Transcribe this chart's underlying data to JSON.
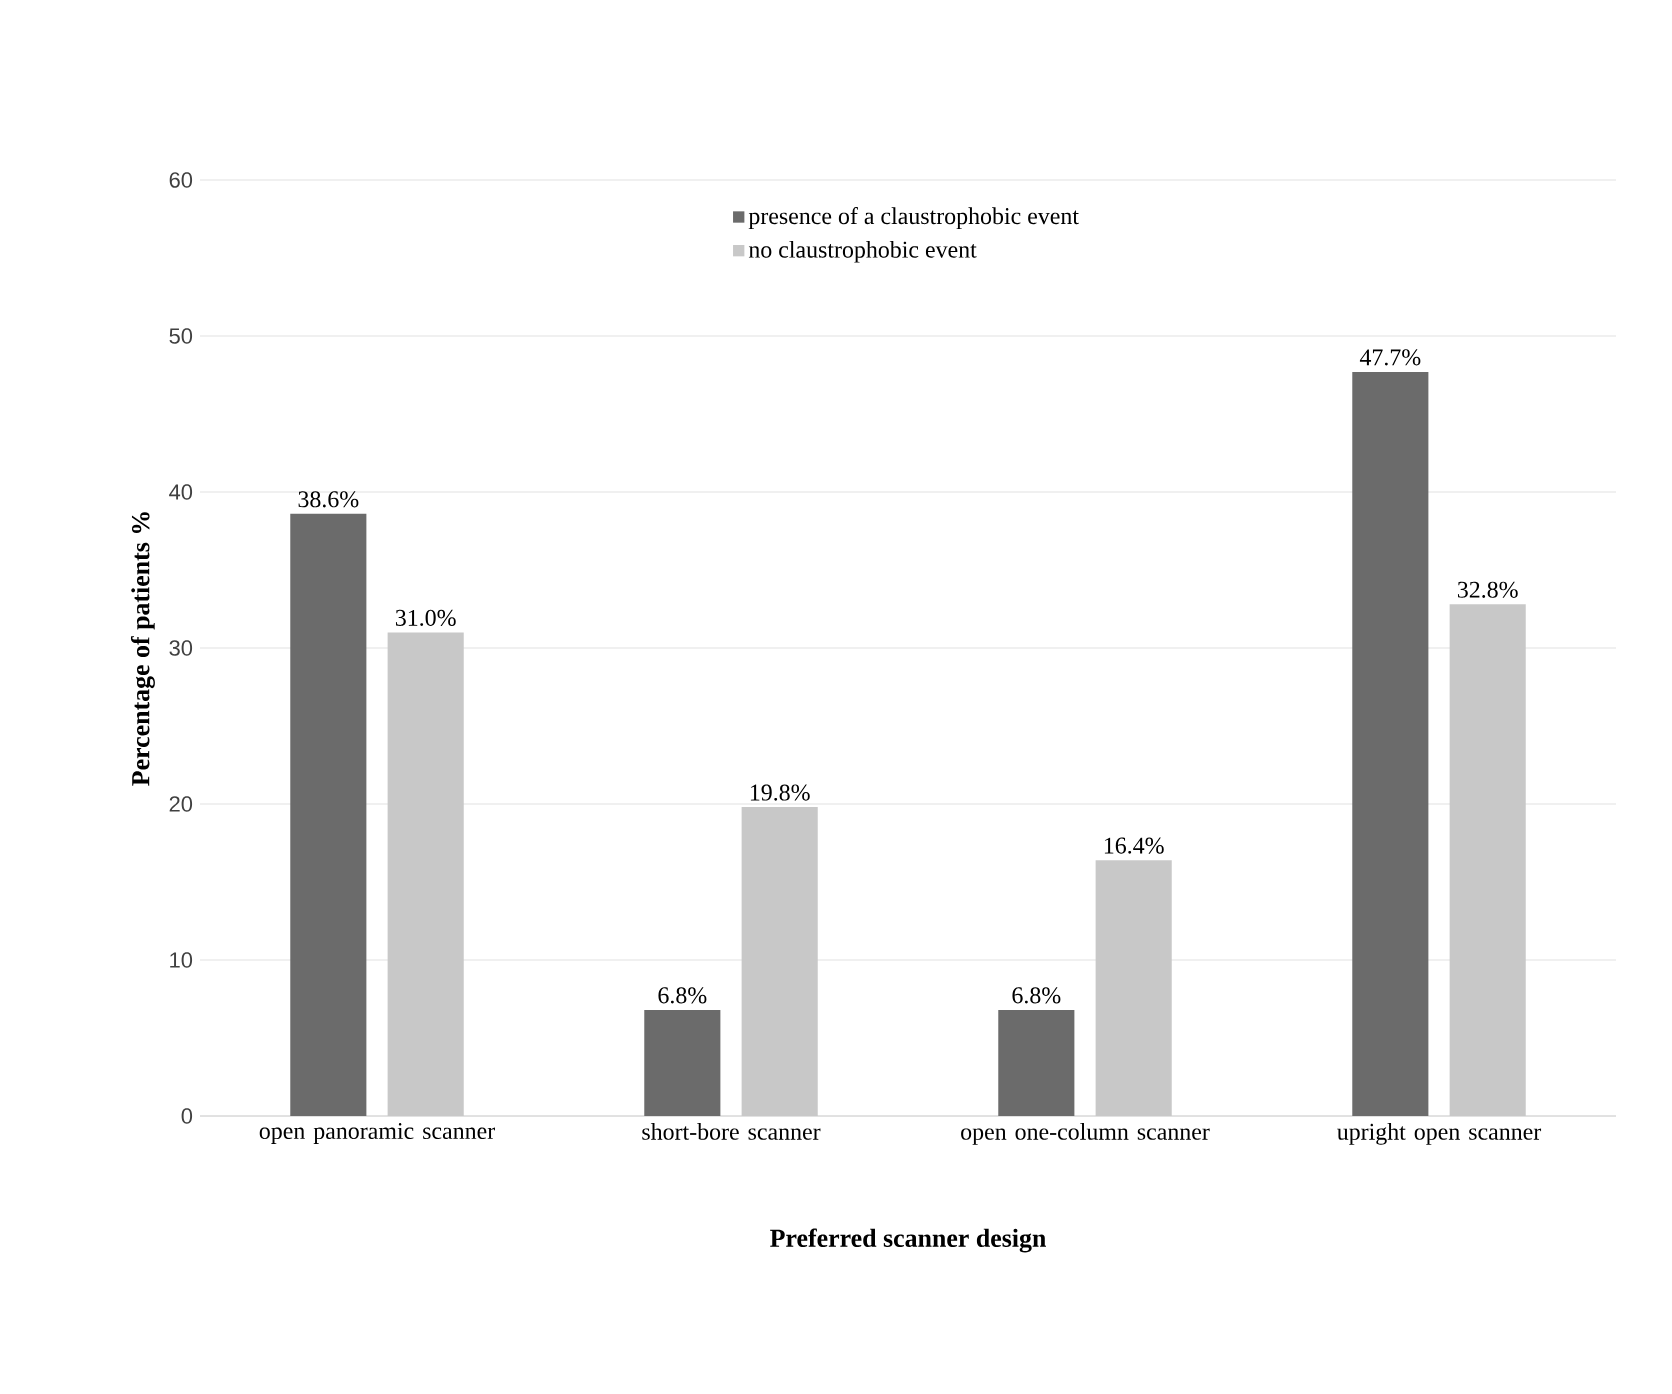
{
  "chart_data": {
    "type": "bar",
    "xlabel": "Preferred scanner design",
    "ylabel": "Percentage of patients %",
    "categories": [
      "open panoramic scanner",
      "short-bore scanner",
      "open one-column scanner",
      "upright open scanner"
    ],
    "series": [
      {
        "name": "presence of a claustrophobic event",
        "color": "#6b6b6b",
        "values": [
          38.6,
          6.8,
          6.8,
          47.7
        ],
        "value_labels": [
          "38.6%",
          "6.8%",
          "6.8%",
          "47.7%"
        ]
      },
      {
        "name": "no claustrophobic event",
        "color": "#c8c8c8",
        "values": [
          31.0,
          19.8,
          16.4,
          32.8
        ],
        "value_labels": [
          "31.0%",
          "19.8%",
          "16.4%",
          "32.8%"
        ]
      }
    ],
    "ylim": [
      0,
      60
    ],
    "yticks": [
      0,
      10,
      20,
      30,
      40,
      50,
      60
    ],
    "grid": "y",
    "legend": "top"
  }
}
